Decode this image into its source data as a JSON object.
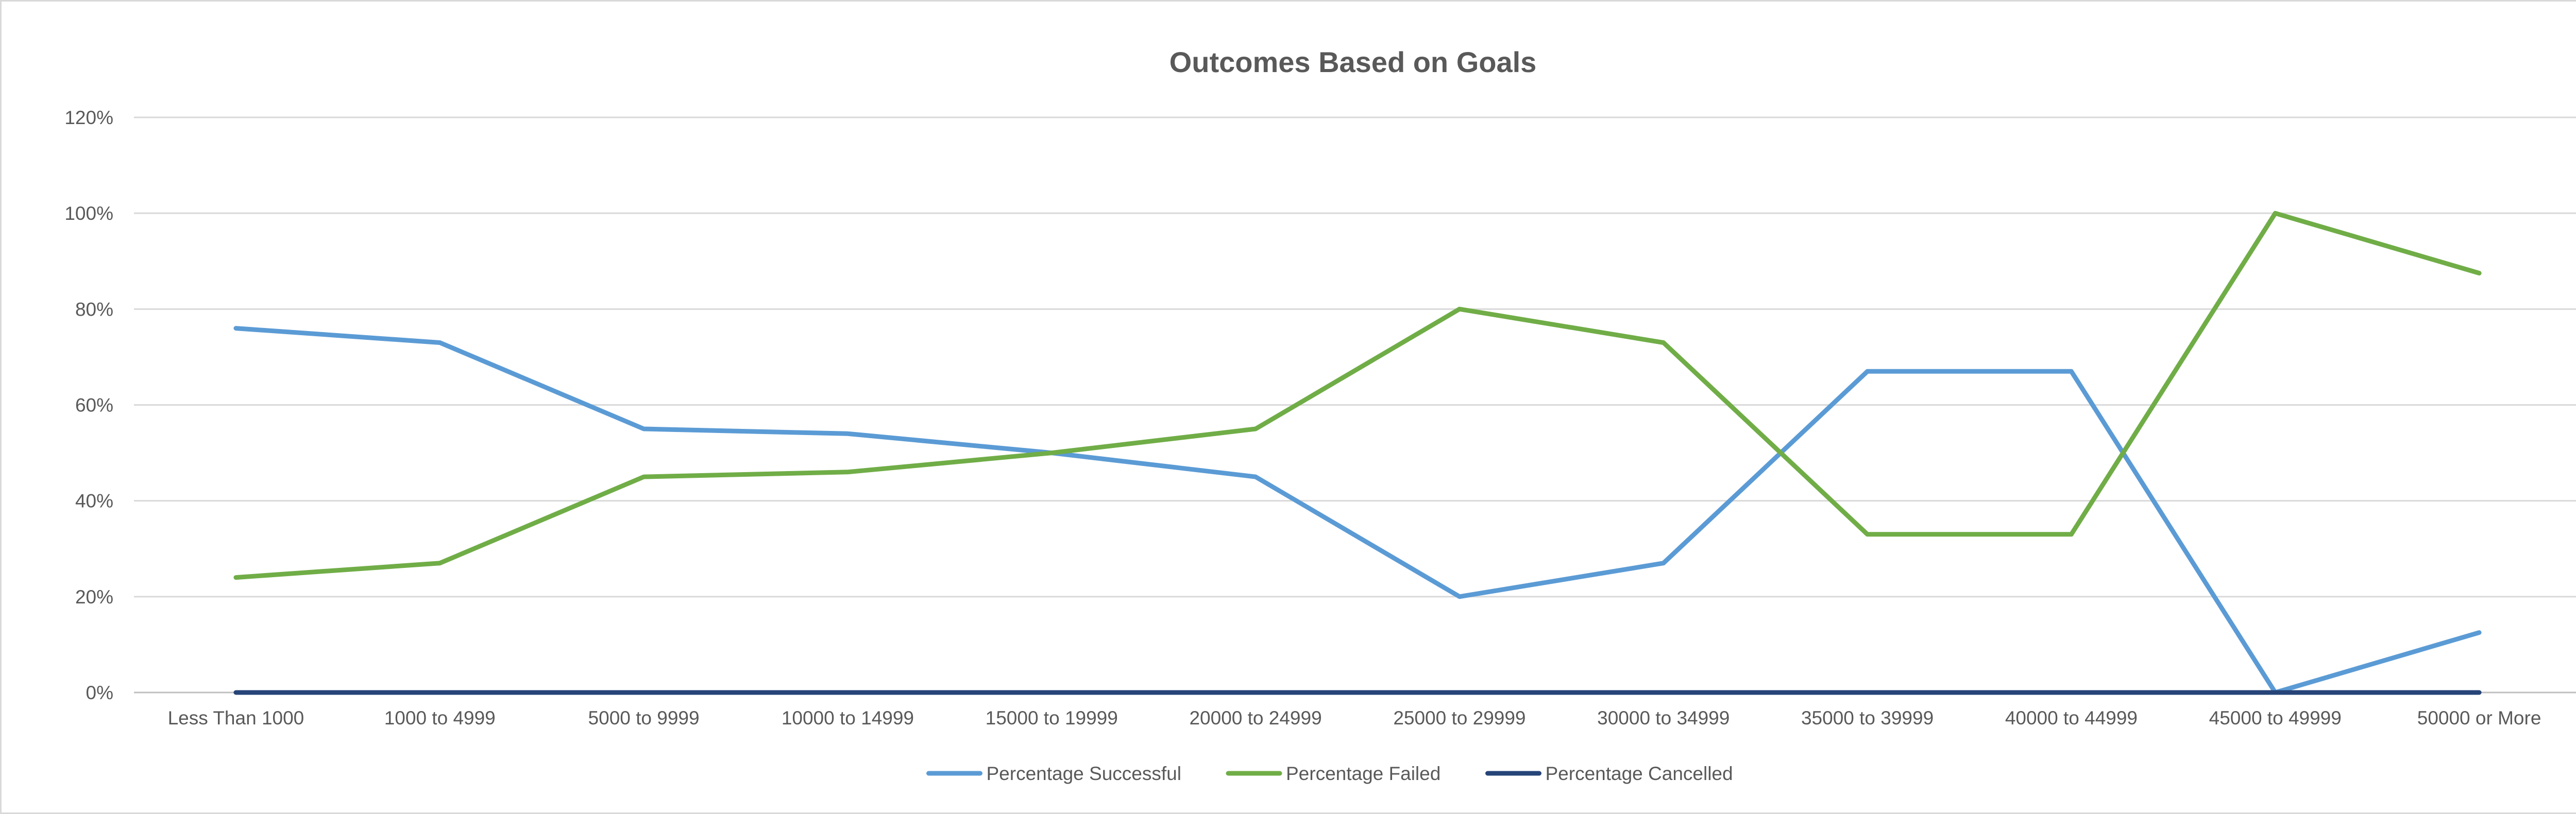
{
  "chart_data": {
    "type": "line",
    "title": "Outcomes Based on Goals",
    "xlabel": "",
    "ylabel": "",
    "categories": [
      "Less Than 1000",
      "1000 to 4999",
      "5000 to 9999",
      "10000 to 14999",
      "15000 to 19999",
      "20000 to 24999",
      "25000 to 29999",
      "30000 to 34999",
      "35000 to 39999",
      "40000 to 44999",
      "45000 to 49999",
      "50000 or More"
    ],
    "ylim": [
      0,
      120
    ],
    "yticks": [
      0,
      20,
      40,
      60,
      80,
      100,
      120
    ],
    "ytick_labels": [
      "0%",
      "20%",
      "40%",
      "60%",
      "80%",
      "100%",
      "120%"
    ],
    "grid": true,
    "legend_position": "bottom",
    "series": [
      {
        "name": "Percentage Successful",
        "color": "#5b9bd5",
        "values": [
          76,
          73,
          55,
          54,
          50,
          45,
          20,
          27,
          67,
          67,
          0,
          12.5
        ]
      },
      {
        "name": "Percentage Failed",
        "color": "#70ad47",
        "values": [
          24,
          27,
          45,
          46,
          50,
          55,
          80,
          73,
          33,
          33,
          100,
          87.5
        ]
      },
      {
        "name": "Percentage Cancelled",
        "color": "#264478",
        "values": [
          0,
          0,
          0,
          0,
          0,
          0,
          0,
          0,
          0,
          0,
          0,
          0
        ]
      }
    ]
  }
}
